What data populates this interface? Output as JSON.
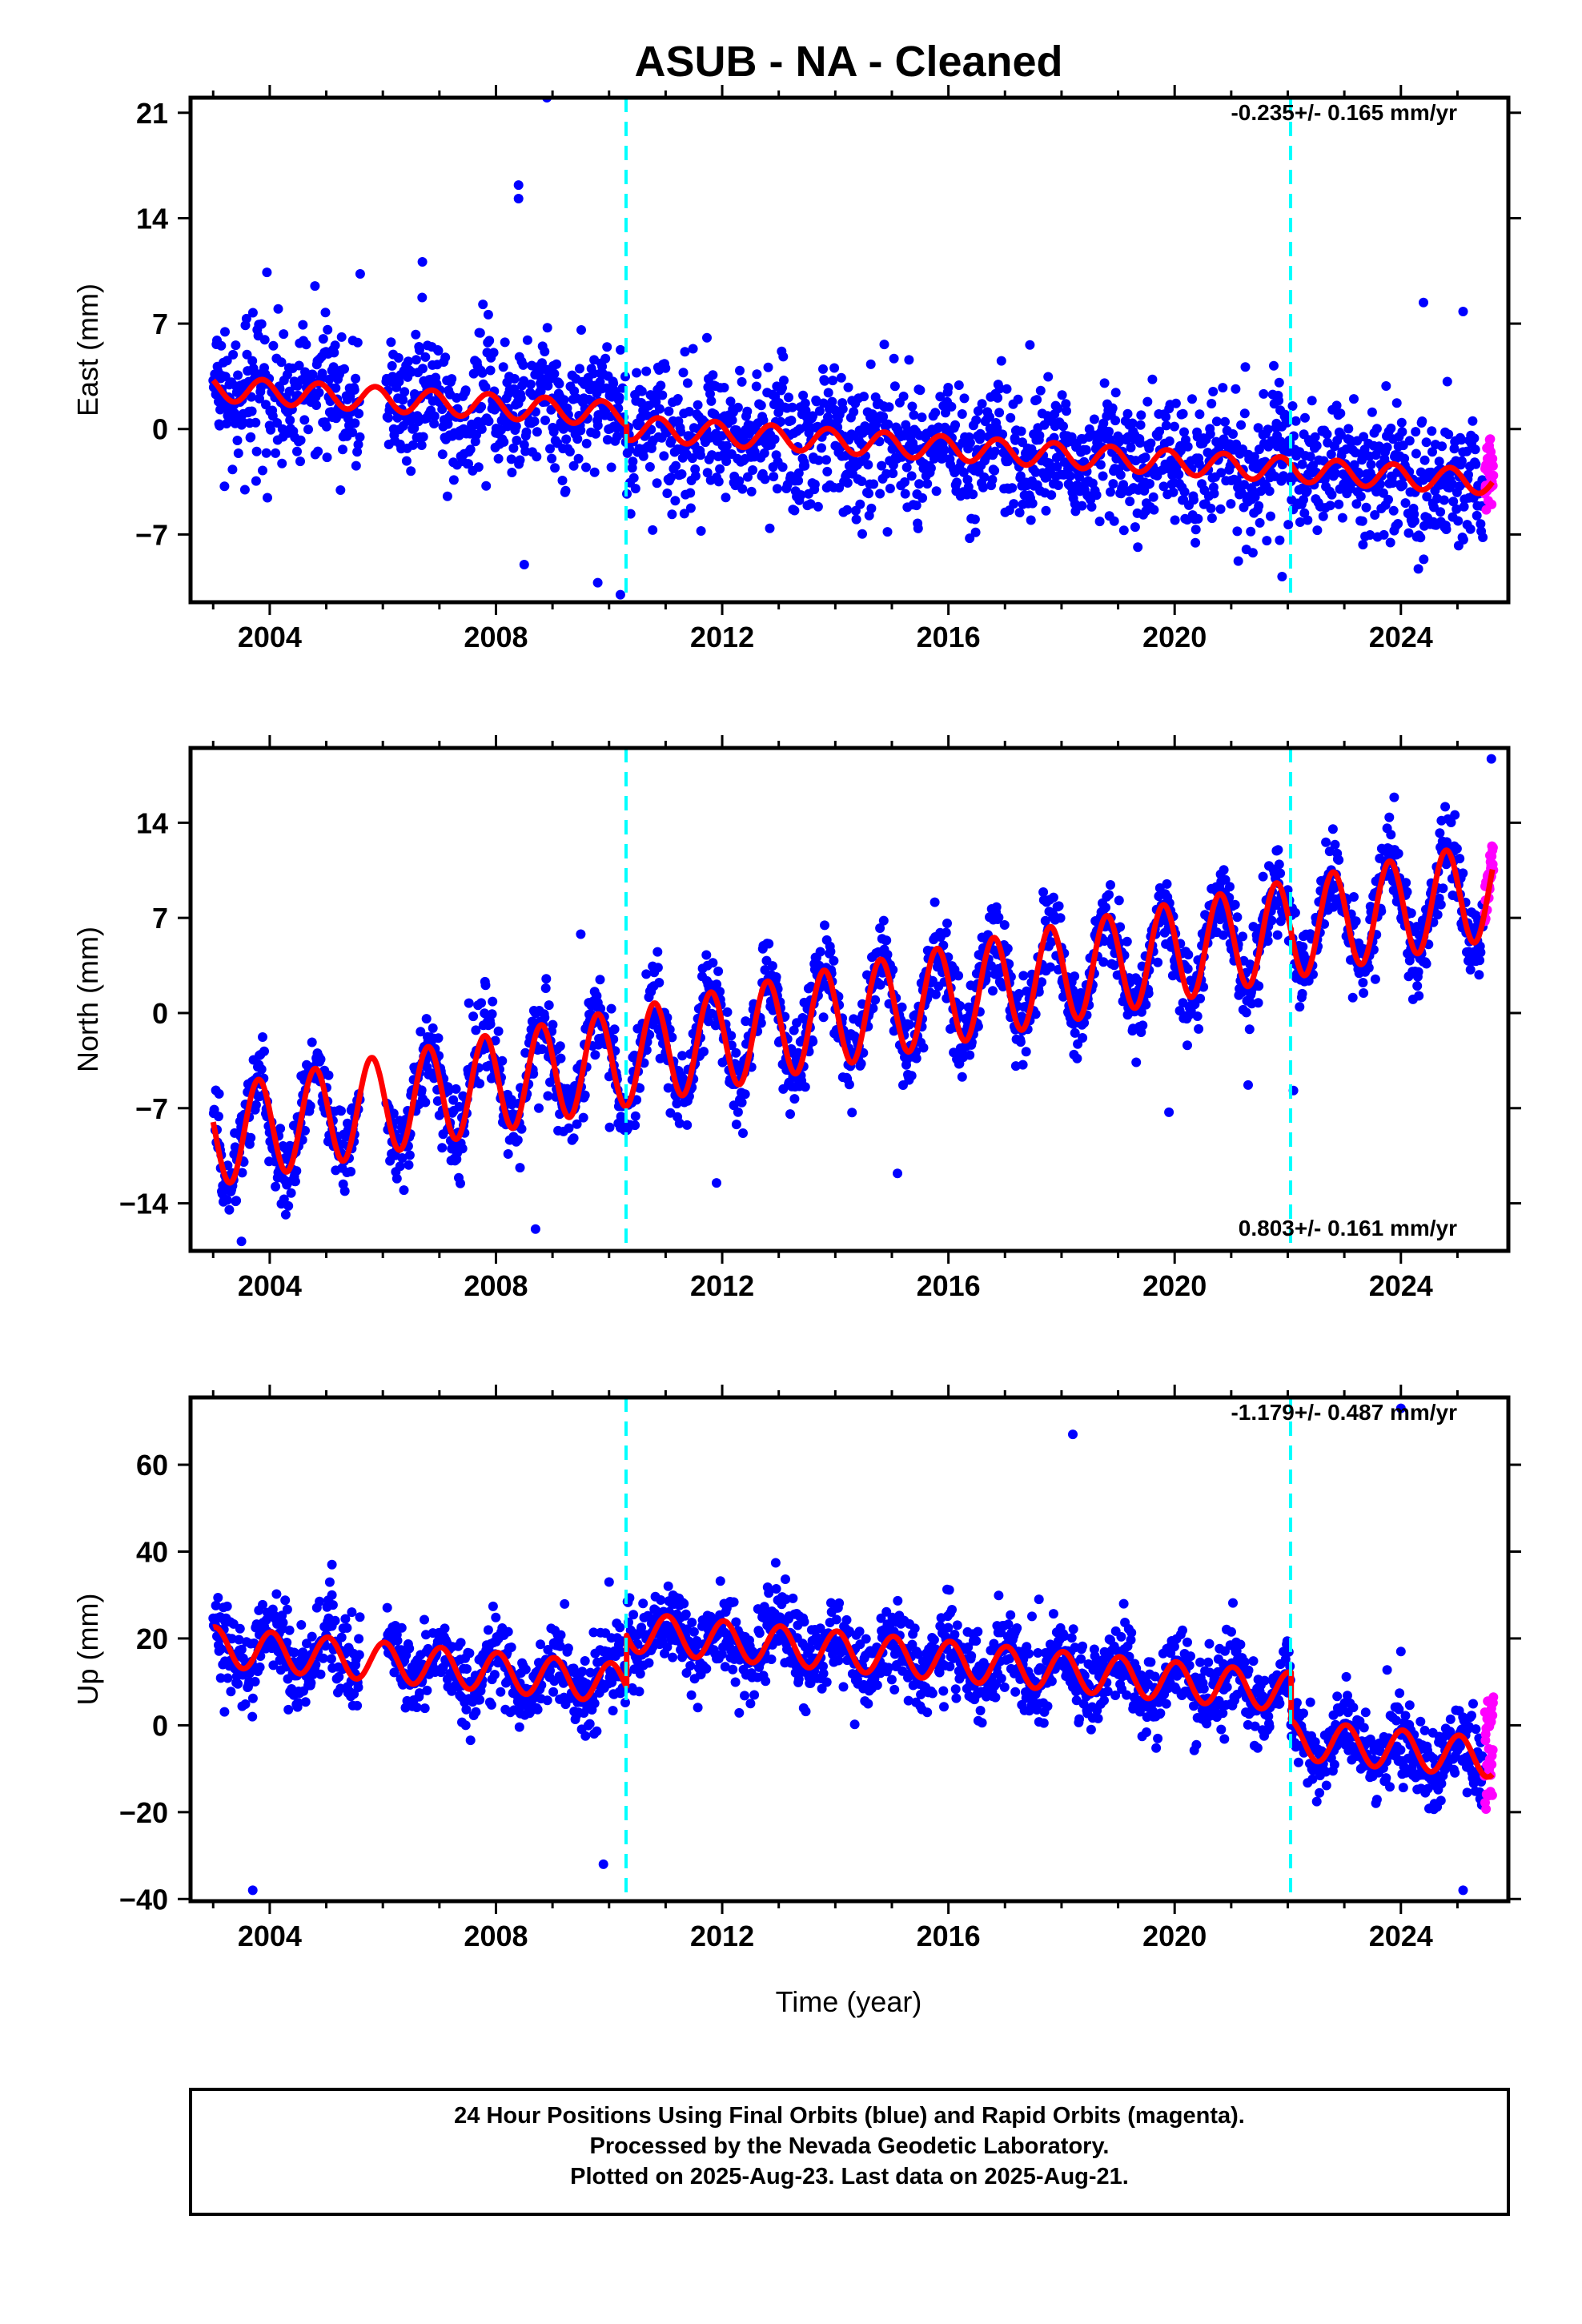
{
  "title": "ASUB  - NA - Cleaned",
  "xlabel": "Time (year)",
  "caption": [
    "24 Hour Positions Using Final Orbits (blue) and Rapid Orbits (magenta).",
    "Processed by the Nevada Geodetic Laboratory.",
    "Plotted on 2025-Aug-23. Last data on 2025-Aug-21."
  ],
  "colors": {
    "final": "#0000ff",
    "rapid": "#ff00ff",
    "model": "#ff0000",
    "steps": "#00ffff"
  },
  "chart_data": [
    {
      "type": "scatter",
      "ylabel": "East (mm)",
      "rate_text": "-0.235+/- 0.165 mm/yr",
      "xlim": [
        2002.6,
        2025.9
      ],
      "ylim": [
        -11.5,
        22
      ],
      "yticks": [
        -7,
        0,
        7,
        14,
        21
      ],
      "xticks": [
        2004,
        2008,
        2012,
        2016,
        2020,
        2024
      ],
      "step_years": [
        2010.3,
        2022.05
      ],
      "model": {
        "rate": -0.235,
        "ref_year": 2014,
        "offset": 0.1,
        "amp": 0.8,
        "phase": 0.62,
        "steps": [
          {
            "year": 2010.3,
            "size": -0.9
          },
          {
            "year": 2022.05,
            "size": 0
          }
        ]
      },
      "noise": 2.2,
      "outliers": [
        {
          "x": 2008.9,
          "y": 22
        },
        {
          "x": 2008.4,
          "y": 16.2
        },
        {
          "x": 2008.4,
          "y": 15.3
        },
        {
          "x": 2006.7,
          "y": 11.1
        },
        {
          "x": 2004.8,
          "y": 9.5
        },
        {
          "x": 2005.6,
          "y": 10.3
        },
        {
          "x": 2010.2,
          "y": -11
        },
        {
          "x": 2009.8,
          "y": -10.2
        },
        {
          "x": 2024.4,
          "y": 8.4
        },
        {
          "x": 2025.1,
          "y": 7.8
        },
        {
          "x": 2021.9,
          "y": -9.8
        },
        {
          "x": 2003.2,
          "y": -3.8
        },
        {
          "x": 2008.5,
          "y": -9
        }
      ]
    },
    {
      "type": "scatter",
      "ylabel": "North (mm)",
      "rate_text": "0.803+/- 0.161 mm/yr",
      "xlim": [
        2002.6,
        2025.9
      ],
      "ylim": [
        -17.5,
        19.5
      ],
      "yticks": [
        -14,
        -7,
        0,
        7,
        14
      ],
      "xticks": [
        2004,
        2008,
        2012,
        2016,
        2020,
        2024
      ],
      "step_years": [
        2010.3,
        2022.05
      ],
      "model": {
        "rate": 0.803,
        "ref_year": 2014,
        "offset": -0.3,
        "amp": 3.6,
        "phase": 0.55,
        "steps": [
          {
            "year": 2010.3,
            "size": 0
          },
          {
            "year": 2022.05,
            "size": 0
          }
        ]
      },
      "noise": 1.5,
      "outliers": [
        {
          "x": 2015.1,
          "y": -11.8
        },
        {
          "x": 2019.9,
          "y": -7.3
        },
        {
          "x": 2021.3,
          "y": -5.3
        },
        {
          "x": 2022.1,
          "y": -5.7
        },
        {
          "x": 2008.7,
          "y": -15.9
        },
        {
          "x": 2009.5,
          "y": 5.8
        },
        {
          "x": 2025.6,
          "y": 18.7
        },
        {
          "x": 2003.5,
          "y": -16.8
        },
        {
          "x": 2011.9,
          "y": -12.5
        }
      ]
    },
    {
      "type": "scatter",
      "ylabel": "Up (mm)",
      "rate_text": "-1.179+/- 0.487 mm/yr",
      "xlim": [
        2002.6,
        2025.9
      ],
      "ylim": [
        -40.5,
        75.5
      ],
      "yticks": [
        -40,
        -20,
        0,
        20,
        40,
        60
      ],
      "xticks": [
        2004,
        2008,
        2012,
        2016,
        2020,
        2024
      ],
      "step_years": [
        2010.3,
        2022.05
      ],
      "model": {
        "rate": -1.179,
        "ref_year": 2014,
        "offset": 5.2,
        "amp": 4.5,
        "phase": 0.78,
        "steps": [
          {
            "year": 2010.3,
            "size": 12
          },
          {
            "year": 2022.05,
            "size": -11
          }
        ]
      },
      "noise": 4.8,
      "outliers": [
        {
          "x": 2018.2,
          "y": 67
        },
        {
          "x": 2024.0,
          "y": 73
        },
        {
          "x": 2005.1,
          "y": 37
        },
        {
          "x": 2005.1,
          "y": 30
        },
        {
          "x": 2010.0,
          "y": 33
        },
        {
          "x": 2003.7,
          "y": -38
        },
        {
          "x": 2009.9,
          "y": -32
        },
        {
          "x": 2025.1,
          "y": -38
        },
        {
          "x": 2017.6,
          "y": 29
        },
        {
          "x": 2019.1,
          "y": 28
        },
        {
          "x": 2024.0,
          "y": 17
        }
      ]
    }
  ]
}
